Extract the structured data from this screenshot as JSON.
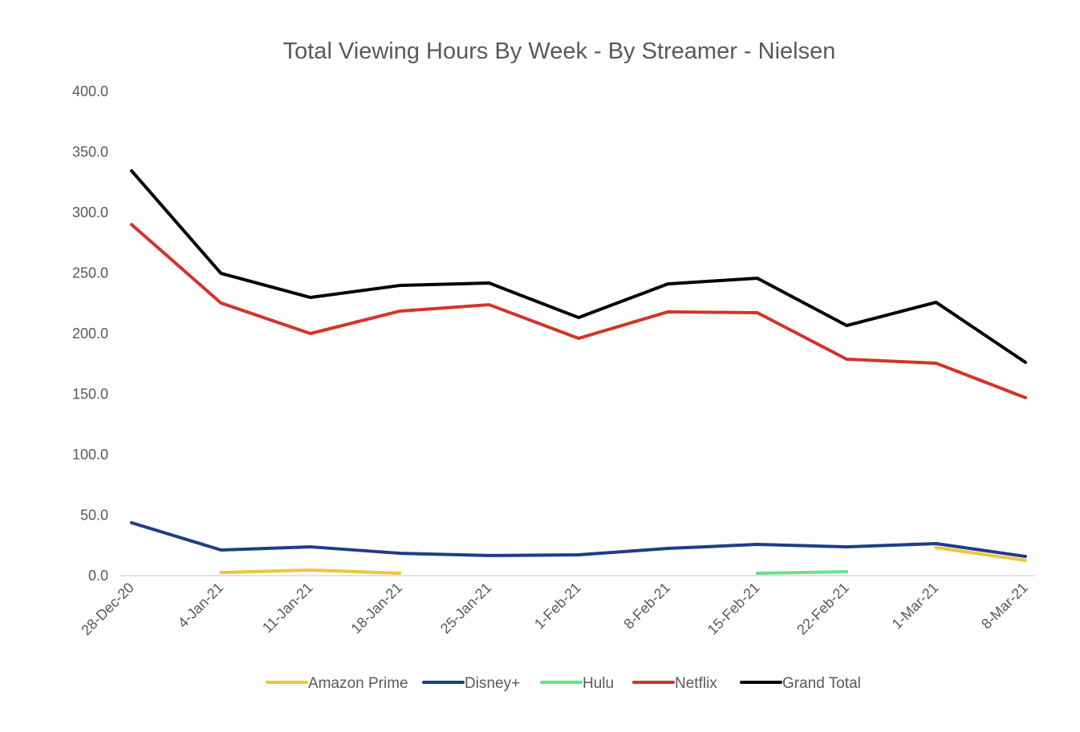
{
  "chart_data": {
    "type": "line",
    "title": "Total Viewing Hours  By Week - By Streamer - Nielsen",
    "xlabel": "",
    "ylabel": "",
    "ylim": [
      0,
      400
    ],
    "yticks": [
      "0.0",
      "50.0",
      "100.0",
      "150.0",
      "200.0",
      "250.0",
      "300.0",
      "350.0",
      "400.0"
    ],
    "grid": false,
    "legend_position": "bottom",
    "categories": [
      "28-Dec-20",
      "4-Jan-21",
      "11-Jan-21",
      "18-Jan-21",
      "25-Jan-21",
      "1-Feb-21",
      "8-Feb-21",
      "15-Feb-21",
      "22-Feb-21",
      "1-Mar-21",
      "8-Mar-21"
    ],
    "series": [
      {
        "name": "Amazon Prime",
        "color": "#F0C43F",
        "values": [
          null,
          2.6,
          4.6,
          2.0,
          null,
          null,
          null,
          null,
          null,
          23.2,
          12.6
        ]
      },
      {
        "name": "Disney+",
        "color": "#1F3C88",
        "values": [
          43.7,
          21.2,
          23.8,
          18.5,
          16.6,
          17.2,
          22.5,
          25.8,
          23.8,
          26.5,
          15.9
        ]
      },
      {
        "name": "Hulu",
        "color": "#6BE08C",
        "values": [
          null,
          null,
          null,
          null,
          null,
          null,
          null,
          2.0,
          3.3,
          null,
          null
        ]
      },
      {
        "name": "Netflix",
        "color": "#D43329",
        "values": [
          290,
          225.2,
          200,
          218.5,
          223.8,
          196,
          217.9,
          217.2,
          178.8,
          175.5,
          147
        ]
      },
      {
        "name": "Grand Total",
        "color": "#000000",
        "values": [
          334.4,
          249.7,
          229.8,
          239.7,
          241.7,
          213.2,
          241,
          245.7,
          206.6,
          225.8,
          176.2
        ]
      }
    ]
  }
}
